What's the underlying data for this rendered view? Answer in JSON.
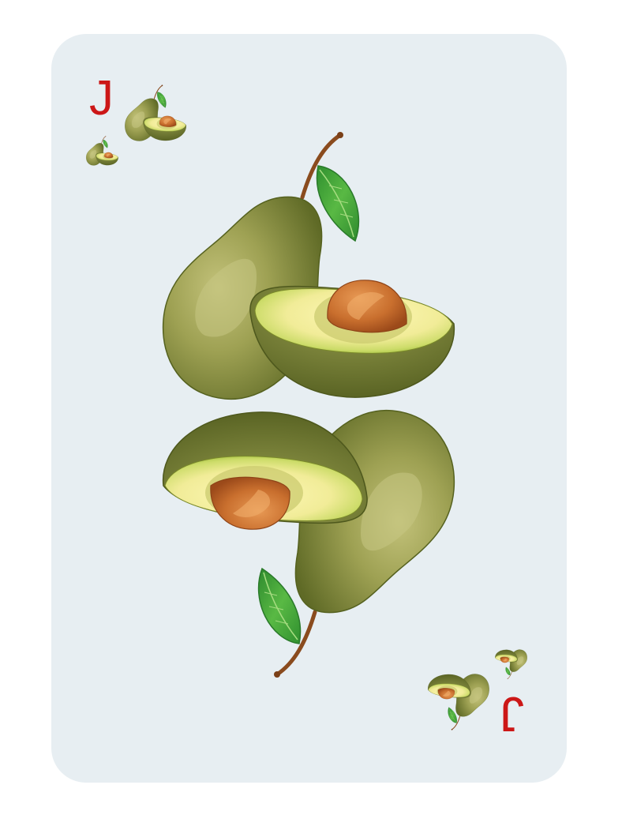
{
  "card": {
    "rank": "J",
    "suit_icon": "avocado-icon",
    "colors": {
      "card_background": "#e7eef2",
      "page_background": "#ffffff",
      "rank": "#cc1717",
      "avocado_skin": "#7c8a3c",
      "avocado_flesh": "#f6f0a0",
      "avocado_pit": "#c2692d",
      "leaf": "#44a83a",
      "stem": "#8a4b1e"
    }
  }
}
